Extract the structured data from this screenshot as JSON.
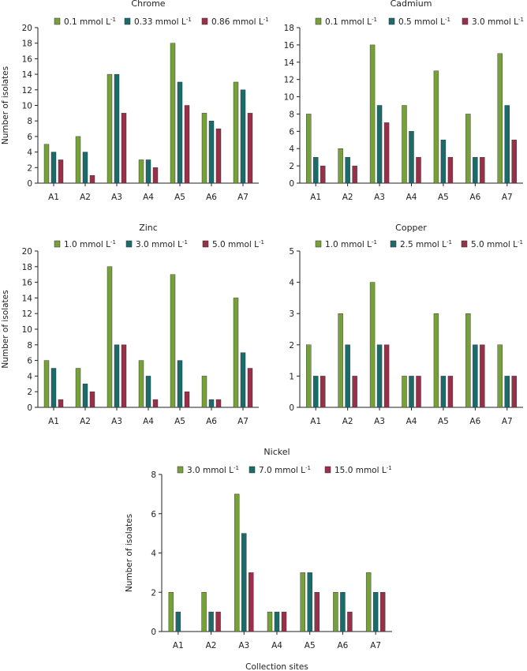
{
  "colors": {
    "series1": "#76a038",
    "series2": "#1c6b6b",
    "series3": "#98304a"
  },
  "xlabel": "Collection sites",
  "ylabel": "Number of isolates",
  "chart_data": [
    {
      "type": "bar",
      "title": "Chrome",
      "categories": [
        "A1",
        "A2",
        "A3",
        "A4",
        "A5",
        "A6",
        "A7"
      ],
      "ylim": [
        0,
        20
      ],
      "yticks": [
        0,
        2,
        4,
        6,
        8,
        10,
        12,
        14,
        16,
        18,
        20
      ],
      "ylabel": "Number of isolates",
      "xlabel": "",
      "series": [
        {
          "name": "0.1 mmol L",
          "unit_sup": "-1",
          "values": [
            5,
            6,
            14,
            3,
            18,
            9,
            13
          ]
        },
        {
          "name": "0.33 mmol L",
          "unit_sup": "-1",
          "values": [
            4,
            4,
            14,
            3,
            13,
            8,
            12
          ]
        },
        {
          "name": "0.86 mmol L",
          "unit_sup": "-1",
          "values": [
            3,
            1,
            9,
            2,
            10,
            7,
            9
          ]
        }
      ]
    },
    {
      "type": "bar",
      "title": "Cadmium",
      "categories": [
        "A1",
        "A2",
        "A3",
        "A4",
        "A5",
        "A6",
        "A7"
      ],
      "ylim": [
        0,
        18
      ],
      "yticks": [
        0,
        2,
        4,
        6,
        8,
        10,
        12,
        14,
        16,
        18
      ],
      "ylabel": "",
      "xlabel": "",
      "series": [
        {
          "name": "0.1 mmol L",
          "unit_sup": "-1",
          "values": [
            8,
            4,
            16,
            9,
            13,
            8,
            15
          ]
        },
        {
          "name": "0.5 mmol L",
          "unit_sup": "-1",
          "values": [
            3,
            3,
            9,
            6,
            5,
            3,
            9
          ]
        },
        {
          "name": "3.0 mmol L",
          "unit_sup": "-1",
          "values": [
            2,
            2,
            7,
            3,
            3,
            3,
            5
          ]
        }
      ]
    },
    {
      "type": "bar",
      "title": "Zinc",
      "categories": [
        "A1",
        "A2",
        "A3",
        "A4",
        "A5",
        "A6",
        "A7"
      ],
      "ylim": [
        0,
        20
      ],
      "yticks": [
        0,
        2,
        4,
        6,
        8,
        10,
        12,
        14,
        16,
        18,
        20
      ],
      "ylabel": "Number of isolates",
      "xlabel": "",
      "series": [
        {
          "name": "1.0 mmol L",
          "unit_sup": "-1",
          "values": [
            6,
            5,
            18,
            6,
            17,
            4,
            14
          ]
        },
        {
          "name": "3.0  mmol L",
          "unit_sup": "-1",
          "values": [
            5,
            3,
            8,
            4,
            6,
            1,
            7
          ]
        },
        {
          "name": "5.0 mmol L",
          "unit_sup": "-1",
          "values": [
            1,
            2,
            8,
            1,
            2,
            1,
            5
          ]
        }
      ]
    },
    {
      "type": "bar",
      "title": "Copper",
      "categories": [
        "A1",
        "A2",
        "A3",
        "A4",
        "A5",
        "A6",
        "A7"
      ],
      "ylim": [
        0,
        5
      ],
      "yticks": [
        0,
        1,
        2,
        3,
        4,
        5
      ],
      "ylabel": "",
      "xlabel": "",
      "series": [
        {
          "name": "1.0  mmol L",
          "unit_sup": "-1",
          "values": [
            2,
            3,
            4,
            1,
            3,
            3,
            2
          ]
        },
        {
          "name": "2.5 mmol L",
          "unit_sup": "-1",
          "values": [
            1,
            2,
            2,
            1,
            1,
            2,
            1
          ]
        },
        {
          "name": "5.0 mmol L",
          "unit_sup": "-1",
          "values": [
            1,
            1,
            2,
            1,
            1,
            2,
            1
          ]
        }
      ]
    },
    {
      "type": "bar",
      "title": "Nickel",
      "categories": [
        "A1",
        "A2",
        "A3",
        "A4",
        "A5",
        "A6",
        "A7"
      ],
      "ylim": [
        0,
        8
      ],
      "yticks": [
        0,
        2,
        4,
        6,
        8
      ],
      "ylabel": "Number of isolates",
      "xlabel": "Collection sites",
      "series": [
        {
          "name": "3.0 mmol L",
          "unit_sup": "-1",
          "values": [
            2,
            2,
            7,
            1,
            3,
            2,
            3
          ]
        },
        {
          "name": "7.0 mmol L",
          "unit_sup": "-1",
          "values": [
            1,
            1,
            5,
            1,
            3,
            2,
            2
          ]
        },
        {
          "name": "15.0 mmol L",
          "unit_sup": "-1",
          "values": [
            0,
            1,
            3,
            1,
            2,
            1,
            2
          ]
        }
      ]
    }
  ]
}
